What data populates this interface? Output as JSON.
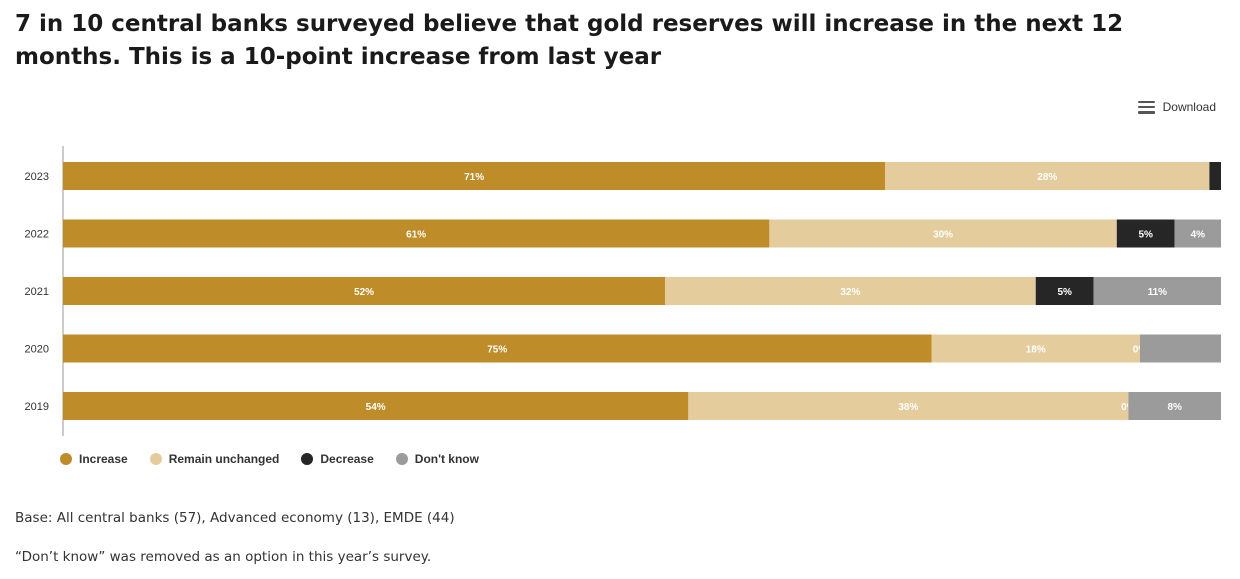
{
  "header": {
    "title": "7 in 10 central banks surveyed believe that gold reserves will increase in the next 12 months. This is a 10-point increase from last year"
  },
  "toolbar": {
    "download_label": "Download",
    "download_icon": "hamburger-menu-icon"
  },
  "chart_data": {
    "type": "bar",
    "orientation": "horizontal",
    "stacked": true,
    "categories": [
      "2023",
      "2022",
      "2021",
      "2020",
      "2019"
    ],
    "series": [
      {
        "name": "Increase",
        "color": "#bf8c2a",
        "values": [
          71,
          61,
          52,
          75,
          54
        ],
        "labels": [
          "71%",
          "61%",
          "52%",
          "75%",
          "54%"
        ]
      },
      {
        "name": "Remain unchanged",
        "color": "#e4cc9c",
        "values": [
          28,
          30,
          32,
          18,
          38
        ],
        "labels": [
          "28%",
          "30%",
          "32%",
          "18%",
          "38%"
        ]
      },
      {
        "name": "Decrease",
        "color": "#262626",
        "values": [
          1,
          5,
          5,
          0,
          0
        ],
        "labels": [
          "",
          "5%",
          "5%",
          "0%",
          "0%"
        ]
      },
      {
        "name": "Don't know",
        "color": "#9b9b9b",
        "values": [
          0,
          4,
          11,
          7,
          8
        ],
        "labels": [
          "",
          "4%",
          "11%",
          "",
          "8%"
        ]
      }
    ],
    "xlim": [
      0,
      100
    ],
    "grid": false,
    "legend_position": "bottom-left"
  },
  "footer": {
    "base_note": "Base: All central banks (57), Advanced economy (13), EMDE (44)",
    "dont_know_note": "“Don’t know” was removed as an option in this year’s survey."
  }
}
